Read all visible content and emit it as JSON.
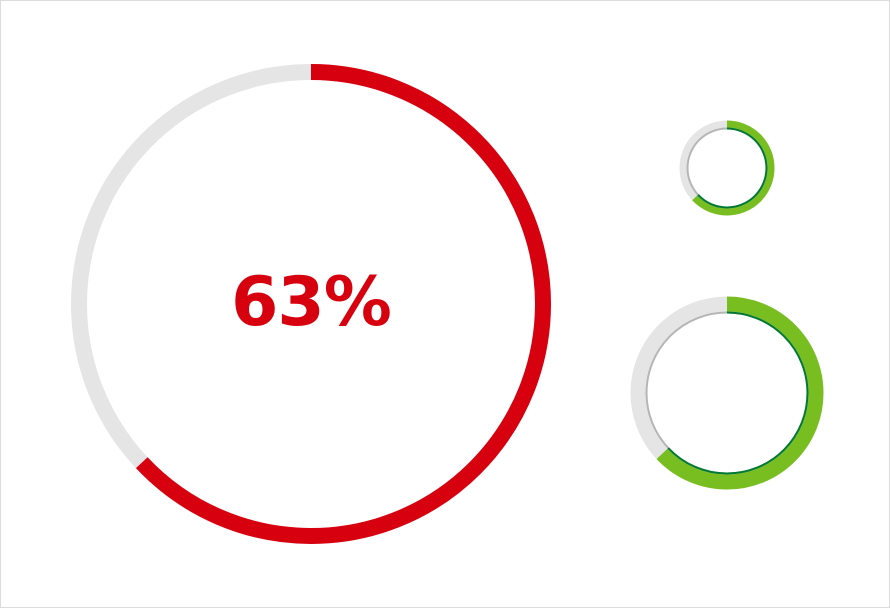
{
  "main_gauge": {
    "label": "63%",
    "value": 0.63,
    "color": "#d7000f",
    "track_color": "#e5e5e5"
  },
  "small_gauge": {
    "value": 0.63,
    "color": "#78be20",
    "inner_color": "#007a33",
    "track_color": "#e5e5e5",
    "inner_track_color": "#b5b5b5"
  },
  "medium_gauge": {
    "value": 0.63,
    "color": "#78be20",
    "inner_color": "#007a33",
    "track_color": "#e5e5e5",
    "inner_track_color": "#b5b5b5"
  }
}
